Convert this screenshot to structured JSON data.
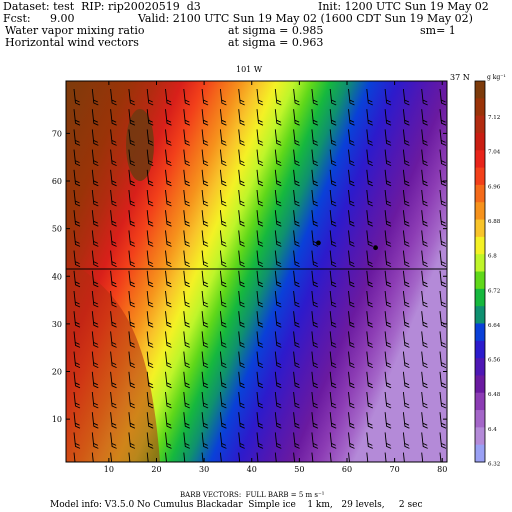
{
  "header": {
    "line1_left": "Dataset: test  RIP: rip20020519  d3",
    "line1_right": "Init: 1200 UTC Sun 19 May 02",
    "line2_fcst_label": "Fcst:",
    "line2_fcst_value": "9.00",
    "line2_valid": "Valid: 2100 UTC Sun 19 May 02 (1600 CDT Sun 19 May 02)",
    "line3_field": "Water vapor mixing ratio",
    "line3_level": "at sigma = 0.985",
    "line3_extra": "sm= 1",
    "line4_field": "Horizontal wind vectors",
    "line4_level": "at sigma = 0.963"
  },
  "map_labels": {
    "meridian": "101 W",
    "parallel": "37 N"
  },
  "legend": {
    "units": "g kg⁻¹",
    "ticks": [
      "7.12",
      "7.04",
      "6.96",
      "6.88",
      "6.8",
      "6.72",
      "6.64",
      "6.56",
      "6.48",
      "6.4",
      "6.32"
    ],
    "colors": [
      "#7d3b0b",
      "#9a3308",
      "#b22b10",
      "#c91e12",
      "#e8241a",
      "#f2401a",
      "#f46a1a",
      "#f6921c",
      "#f8c42a",
      "#f4f125",
      "#bff52a",
      "#60d81a",
      "#16b83e",
      "#0f9070",
      "#0a40d8",
      "#2c1bcc",
      "#4e17b4",
      "#6a1aa0",
      "#8c3cb4",
      "#a466c8",
      "#b48ad8",
      "#9aa0f4"
    ]
  },
  "axes": {
    "x_ticks": [
      "10",
      "20",
      "30",
      "40",
      "50",
      "60",
      "70",
      "80"
    ],
    "y_ticks": [
      "10",
      "20",
      "30",
      "40",
      "50",
      "60",
      "70"
    ]
  },
  "markers": [
    {
      "x": 54,
      "y": 47
    },
    {
      "x": 66,
      "y": 46
    }
  ],
  "footer": {
    "barb_note": "BARB VECTORS:  FULL BARB = 5 m s⁻¹",
    "model_info": "Model info: V3.5.0 No Cumulus Blackadar  Simple ice    1 km,   29 levels,     2 sec"
  }
}
